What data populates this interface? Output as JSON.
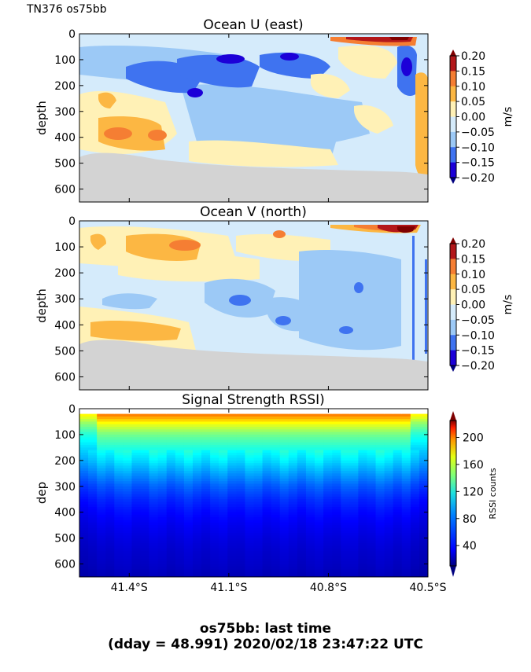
{
  "figure": {
    "suptitle": "TN376 os75bb",
    "footer_line1": "os75bb: last time",
    "footer_line2": "(dday = 48.991) 2020/02/18 23:47:22 UTC"
  },
  "chart_data": [
    {
      "type": "heatmap",
      "title": "Ocean U (east)",
      "ylabel": "depth",
      "xlabel": "",
      "ylim": [
        650,
        0
      ],
      "yticks": [
        0,
        100,
        200,
        300,
        400,
        500,
        600
      ],
      "colorbar": {
        "label": "m/s",
        "range": [
          -0.2,
          0.2
        ],
        "ticks": [
          0.2,
          0.15,
          0.1,
          0.05,
          0.0,
          -0.05,
          -0.1,
          -0.15,
          -0.2
        ],
        "tick_labels": [
          "0.20",
          "0.15",
          "0.10",
          "0.05",
          "0.00",
          "−0.05",
          "−0.10",
          "−0.15",
          "−0.20"
        ]
      },
      "features": [
        {
          "desc": "strong eastward flow near surface at southern end",
          "lat": -40.6,
          "depth": 20,
          "value": 0.2
        },
        {
          "desc": "westward core",
          "lat": -40.55,
          "depth": 120,
          "value": -0.2
        },
        {
          "desc": "westward eddy",
          "lat": -41.05,
          "depth": 90,
          "value": -0.2
        },
        {
          "desc": "westward eddy",
          "lat": -41.25,
          "depth": 180,
          "value": -0.17
        },
        {
          "desc": "eastward blob",
          "lat": -41.4,
          "depth": 390,
          "value": 0.12
        }
      ],
      "seafloor_depth_range": [
        450,
        530
      ]
    },
    {
      "type": "heatmap",
      "title": "Ocean V (north)",
      "ylabel": "depth",
      "xlabel": "",
      "ylim": [
        650,
        0
      ],
      "yticks": [
        0,
        100,
        200,
        300,
        400,
        500,
        600
      ],
      "colorbar": {
        "label": "m/s",
        "range": [
          -0.2,
          0.2
        ],
        "ticks": [
          0.2,
          0.15,
          0.1,
          0.05,
          0.0,
          -0.05,
          -0.1,
          -0.15,
          -0.2
        ],
        "tick_labels": [
          "0.20",
          "0.15",
          "0.10",
          "0.05",
          "0.00",
          "−0.05",
          "−0.10",
          "−0.15",
          "−0.20"
        ]
      },
      "features": [
        {
          "desc": "strong northward flow near surface",
          "lat": -40.6,
          "depth": 30,
          "value": 0.2
        },
        {
          "desc": "northward band",
          "lat": -41.1,
          "depth": 100,
          "value": 0.12
        },
        {
          "desc": "southward patch",
          "lat": -40.85,
          "depth": 380,
          "value": -0.15
        },
        {
          "desc": "northward band near bottom",
          "lat": -41.4,
          "depth": 420,
          "value": 0.08
        }
      ],
      "seafloor_depth_range": [
        450,
        530
      ]
    },
    {
      "type": "heatmap",
      "title": "Signal Strength RSSI)",
      "ylabel": "dep",
      "xlabel": "",
      "ylim": [
        650,
        0
      ],
      "yticks": [
        0,
        100,
        200,
        300,
        400,
        500,
        600
      ],
      "xticks": [
        "41.4°S",
        "41.1°S",
        "40.8°S",
        "40.5°S"
      ],
      "xlim_lat": [
        -41.55,
        -40.5
      ],
      "colorbar": {
        "label": "RSSI counts",
        "range": [
          10,
          225
        ],
        "ticks": [
          200,
          160,
          120,
          80,
          40
        ],
        "tick_labels": [
          "200",
          "160",
          "120",
          "80",
          "40"
        ]
      },
      "profile_depths": [
        20,
        60,
        100,
        150,
        200,
        250,
        300,
        350,
        400,
        450,
        500,
        550,
        600,
        650
      ],
      "profile_rssi": [
        175,
        140,
        115,
        98,
        85,
        70,
        56,
        46,
        39,
        34,
        30,
        27,
        25,
        22
      ]
    }
  ]
}
